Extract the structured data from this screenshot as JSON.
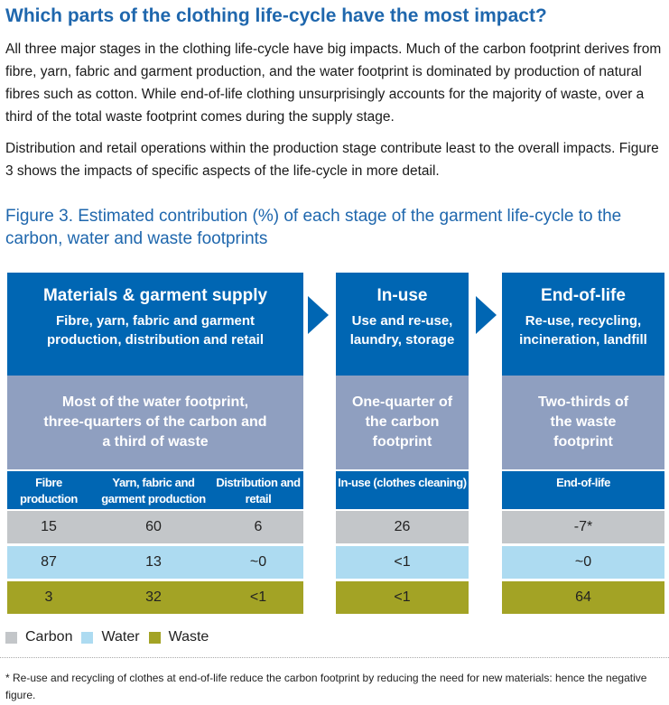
{
  "heading": "Which parts of the clothing life-cycle have the most impact?",
  "paragraphs": [
    "All three major stages in the clothing life-cycle have big impacts. Much of the carbon footprint derives from fibre, yarn, fabric and garment production, and the water footprint is dominated by production of natural fibres such as cotton. While end-of-life clothing unsurprisingly accounts for the majority of waste, over a third of the total waste footprint comes during the supply stage.",
    "Distribution and retail operations within the production stage contribute least to the overall impacts. Figure 3 shows the impacts of specific aspects of the life-cycle in more detail."
  ],
  "figure_title": "Figure 3. Estimated contribution (%) of each stage of the garment life-cycle to the carbon, water and waste footprints",
  "stages": [
    {
      "title": "Materials & garment supply",
      "subtitle": "Fibre, yarn, fabric and garment production, distribution and retail",
      "summary": "Most of the water footprint, three-quarters of the carbon and a third of waste"
    },
    {
      "title": "In-use",
      "subtitle": "Use and re-use, laundry, storage",
      "summary": "One-quarter of the carbon footprint"
    },
    {
      "title": "End-of-life",
      "subtitle": "Re-use, recycling, incineration, landfill",
      "summary": "Two-thirds of the waste footprint"
    }
  ],
  "columns": [
    "Fibre production",
    "Yarn, fabric and garment production",
    "Distribution and retail",
    "In-use (clothes cleaning)",
    "End-of-life"
  ],
  "rows": [
    {
      "name": "Carbon",
      "values": [
        "15",
        "60",
        "6",
        "26",
        "-7*"
      ]
    },
    {
      "name": "Water",
      "values": [
        "87",
        "13",
        "~0",
        "<1",
        "~0"
      ]
    },
    {
      "name": "Waste",
      "values": [
        "3",
        "32",
        "<1",
        "<1",
        "64"
      ]
    }
  ],
  "colors": {
    "stage_blue": "#0066b3",
    "summary_grey": "#8f9fc0",
    "carbon": "#c3c6c9",
    "water": "#addbf1",
    "waste": "#a3a325",
    "title_blue": "#1f67ad"
  },
  "legend": [
    "Carbon",
    "Water",
    "Waste"
  ],
  "footnote": "* Re-use and recycling of clothes at end-of-life reduce the carbon footprint by reducing the need for new materials: hence the negative figure."
}
